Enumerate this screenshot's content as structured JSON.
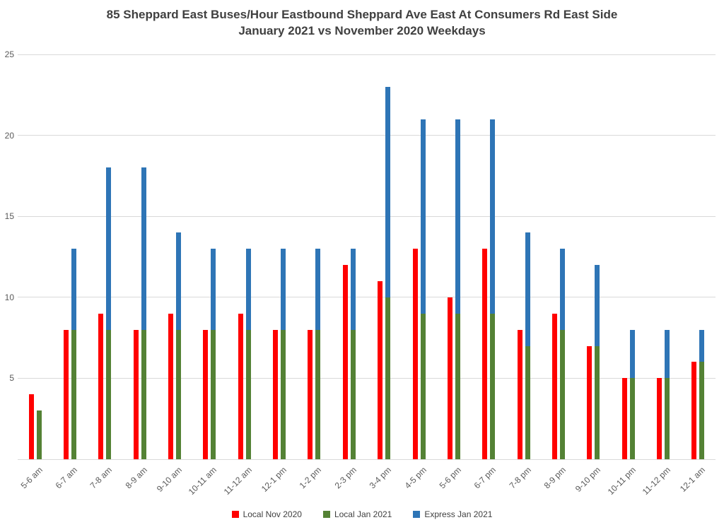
{
  "chart_data": {
    "type": "bar",
    "title": "85 Sheppard East Buses/Hour Eastbound Sheppard Ave East At Consumers Rd East Side",
    "subtitle": "January 2021 vs November 2020 Weekdays",
    "categories": [
      "5-6 am",
      "6-7 am",
      "7-8 am",
      "8-9 am",
      "9-10 am",
      "10-11 am",
      "11-12 am",
      "12-1 pm",
      "1-2 pm",
      "2-3 pm",
      "3-4 pm",
      "4-5 pm",
      "5-6 pm",
      "6-7 pm",
      "7-8 pm",
      "8-9 pm",
      "9-10 pm",
      "10-11 pm",
      "11-12 pm",
      "12-1 am"
    ],
    "series": [
      {
        "name": "Local Nov 2020",
        "color": "#ff0000",
        "stack": "nov2020",
        "values": [
          4,
          8,
          9,
          8,
          9,
          8,
          9,
          8,
          8,
          12,
          11,
          13,
          10,
          13,
          8,
          9,
          7,
          5,
          5,
          6
        ]
      },
      {
        "name": "Local Jan 2021",
        "color": "#548235",
        "stack": "jan2021",
        "values": [
          3,
          8,
          8,
          8,
          8,
          8,
          8,
          8,
          8,
          8,
          10,
          9,
          9,
          9,
          7,
          8,
          7,
          5,
          5,
          6
        ]
      },
      {
        "name": "Express Jan 2021",
        "color": "#2e75b6",
        "stack": "jan2021",
        "values": [
          0,
          5,
          10,
          10,
          6,
          5,
          5,
          5,
          5,
          5,
          13,
          12,
          12,
          12,
          7,
          5,
          5,
          3,
          3,
          2
        ]
      }
    ],
    "ylim": [
      0,
      25
    ],
    "yticks": [
      5,
      10,
      15,
      20,
      25
    ],
    "grid": true,
    "legend_position": "bottom"
  }
}
